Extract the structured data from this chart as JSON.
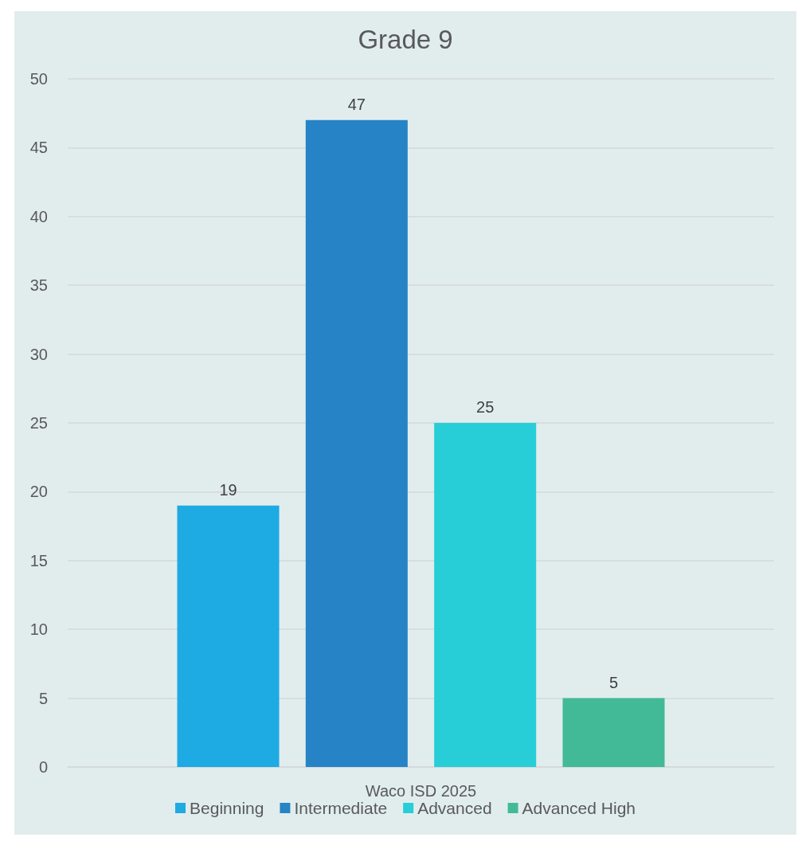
{
  "chart_data": {
    "type": "bar",
    "title": "Grade 9",
    "categories": [
      "Waco ISD 2025"
    ],
    "series": [
      {
        "name": "Beginning",
        "color": "#1eaae2",
        "values": [
          19
        ]
      },
      {
        "name": "Intermediate",
        "color": "#2683c6",
        "values": [
          47
        ]
      },
      {
        "name": "Advanced",
        "color": "#27ced7",
        "values": [
          25
        ]
      },
      {
        "name": "Advanced High",
        "color": "#42ba97",
        "values": [
          5
        ]
      }
    ],
    "ylim": [
      0,
      50
    ],
    "yticks": [
      0,
      5,
      10,
      15,
      20,
      25,
      30,
      35,
      40,
      45,
      50
    ],
    "grid": "y",
    "legend": "bottom",
    "data_labels": true
  }
}
